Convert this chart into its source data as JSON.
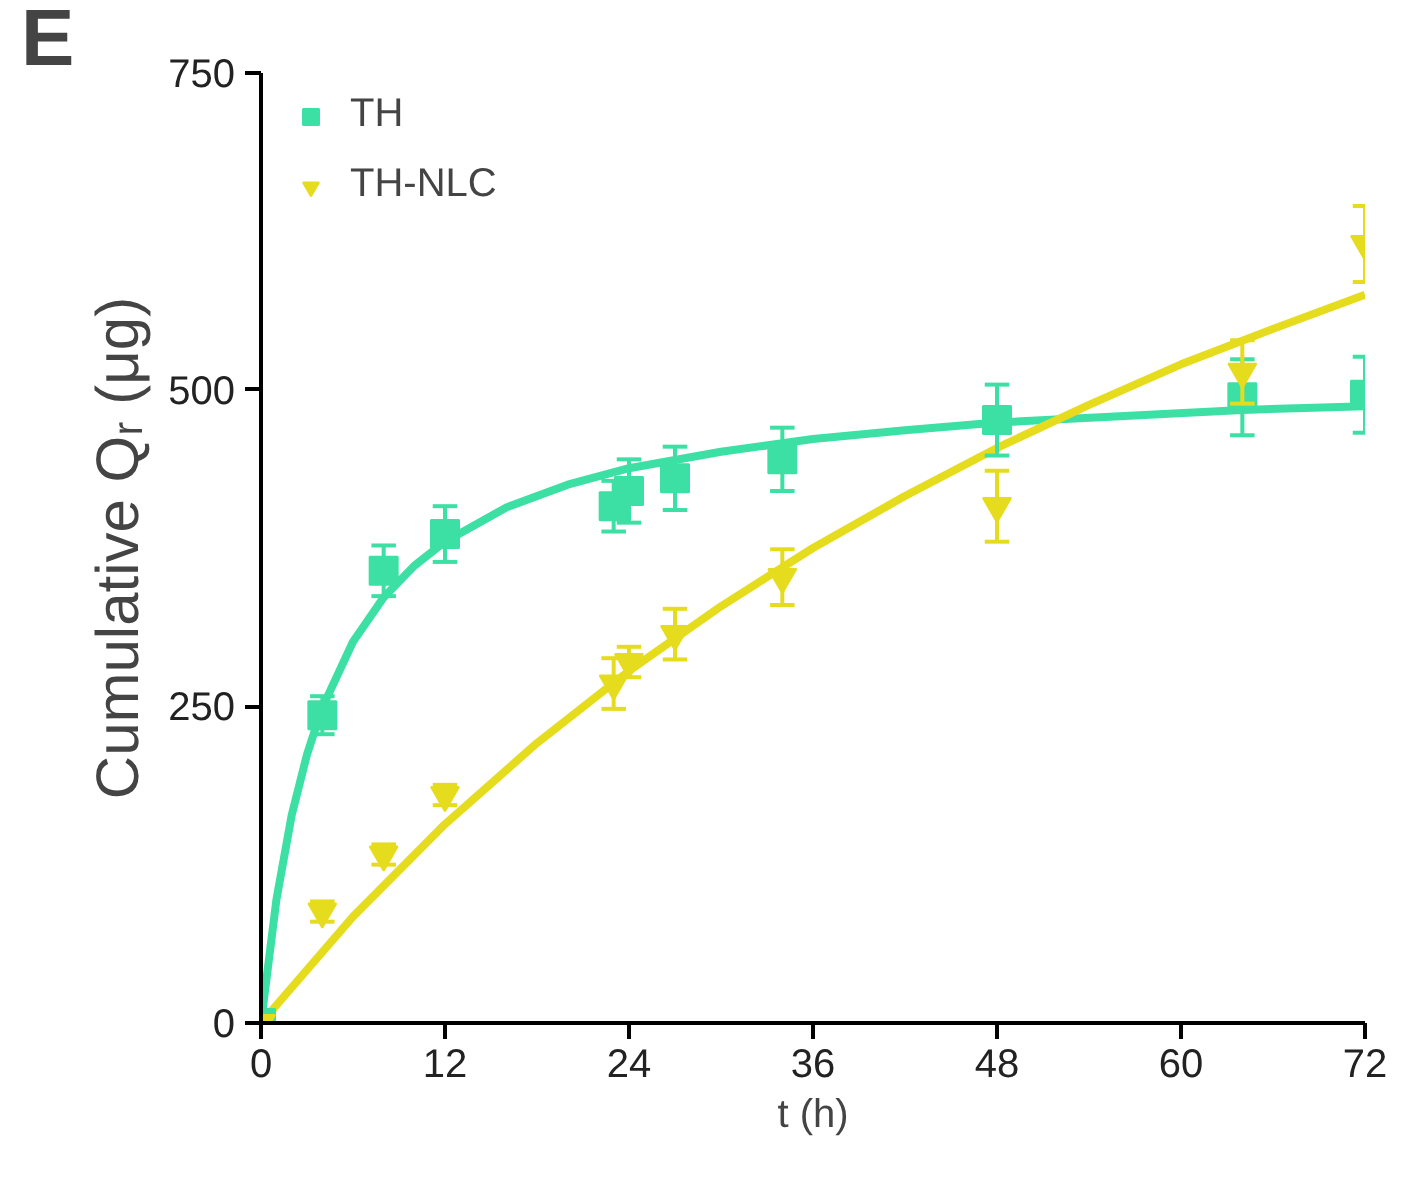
{
  "chart_data": {
    "type": "scatter",
    "xlabel": "t (h)",
    "ylabel": "Cumulative Qᵣ (μg)",
    "annotations": [
      "E"
    ],
    "xlim": [
      0,
      72
    ],
    "xticks": [
      0,
      12,
      24,
      36,
      48,
      60,
      72
    ],
    "ylim": [
      0,
      750
    ],
    "yticks": [
      0,
      250,
      500,
      750
    ],
    "grid": false,
    "legend": "top left",
    "series": [
      {
        "name": "TH",
        "color": "#3ce0a4",
        "marker": "square",
        "x": [
          0,
          4,
          8,
          12,
          23,
          24,
          27,
          34,
          48,
          64,
          72
        ],
        "values": [
          0,
          243,
          357,
          386,
          408,
          420,
          430,
          445,
          476,
          494,
          496
        ],
        "errors": [
          null,
          15,
          20,
          22,
          20,
          25,
          25,
          25,
          28,
          30,
          30
        ]
      },
      {
        "name": "TH-NLC",
        "color": "#e6dc1e",
        "marker": "triangle",
        "x": [
          0,
          4,
          8,
          12,
          23,
          24,
          27,
          34,
          48,
          64,
          72
        ],
        "values": [
          0,
          88,
          133,
          180,
          268,
          285,
          307,
          352,
          408,
          514,
          615
        ],
        "errors": [
          null,
          8,
          8,
          8,
          20,
          12,
          20,
          22,
          28,
          25,
          30
        ]
      },
      {
        "type": "line",
        "color": "#3ce0a4",
        "x": [
          0,
          1,
          2,
          3,
          4,
          6,
          8,
          10,
          12,
          16,
          20,
          24,
          30,
          36,
          42,
          48,
          56,
          64,
          72
        ],
        "values": [
          0,
          97,
          164,
          212,
          249,
          301,
          336,
          361,
          380,
          407,
          425,
          438,
          451,
          461,
          468,
          474,
          479,
          484,
          487
        ]
      },
      {
        "type": "line",
        "color": "#e6dc1e",
        "x": [
          0,
          6,
          12,
          18,
          24,
          30,
          36,
          42,
          48,
          54,
          60,
          66,
          72
        ],
        "values": [
          0,
          84,
          157,
          221,
          278,
          329,
          375,
          416,
          454,
          488,
          520,
          548,
          575
        ]
      }
    ]
  }
}
